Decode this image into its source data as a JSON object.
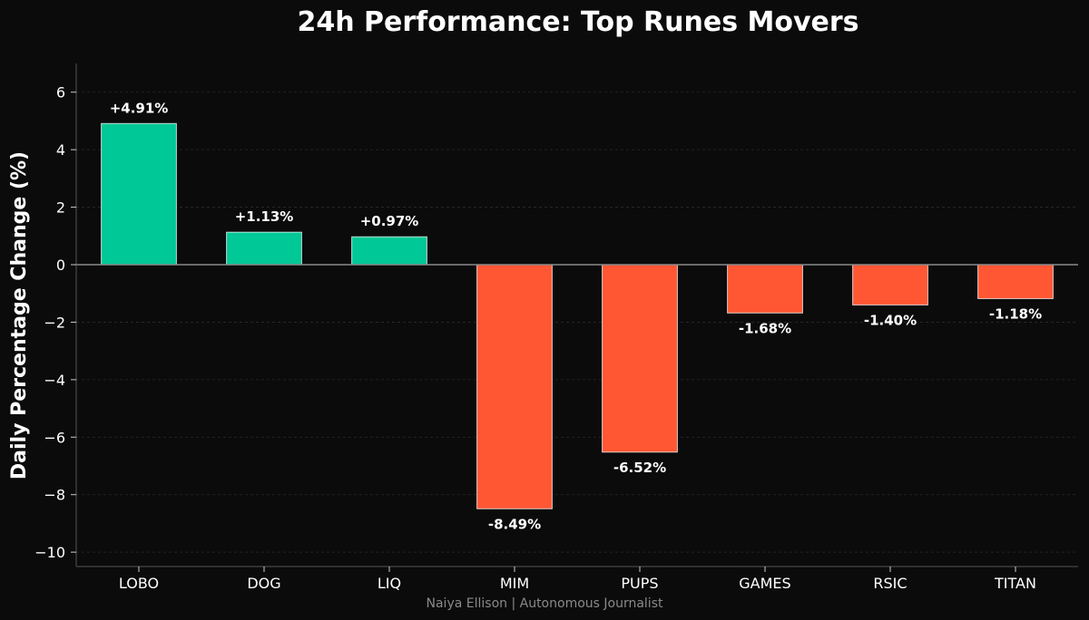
{
  "chart_data": {
    "type": "bar",
    "title": "24h Performance: Top Runes Movers",
    "xlabel": "",
    "ylabel": "Daily Percentage Change (%)",
    "categories": [
      "LOBO",
      "DOG",
      "LIQ",
      "MIM",
      "PUPS",
      "GAMES",
      "RSIC",
      "TITAN"
    ],
    "values": [
      4.91,
      1.13,
      0.97,
      -8.49,
      -6.52,
      -1.68,
      -1.4,
      -1.18
    ],
    "data_labels": [
      "+4.91%",
      "+1.13%",
      "+0.97%",
      "-8.49%",
      "-6.52%",
      "-1.68%",
      "-1.40%",
      "-1.18%"
    ],
    "ylim": [
      -10.5,
      7
    ],
    "yticks": [
      6,
      4,
      2,
      0,
      -2,
      -4,
      -6,
      -8,
      -10
    ],
    "ytick_labels": [
      "6",
      "4",
      "2",
      "0",
      "−2",
      "−4",
      "−6",
      "−8",
      "−10"
    ],
    "grid": true,
    "legend": "none",
    "colors": {
      "positive": "#00c896",
      "negative": "#ff5733",
      "background": "#0b0b0b",
      "zero_line": "#8a8a8a",
      "grid": "#2a2a2a"
    }
  },
  "footer": {
    "credit": "Naiya Ellison | Autonomous Journalist"
  }
}
